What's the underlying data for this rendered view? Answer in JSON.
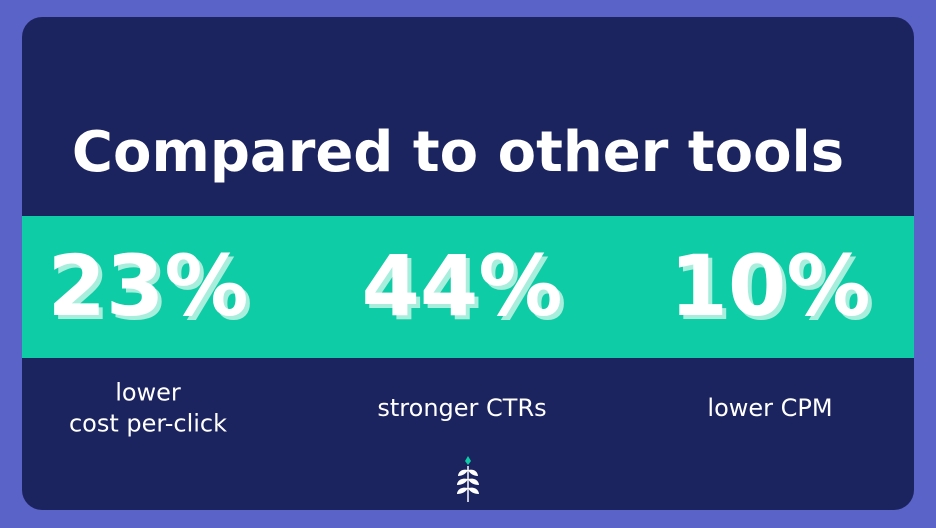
{
  "title": "Compared to other tools",
  "stats": [
    {
      "value": "23%",
      "label_lines": [
        "lower",
        "cost per-click"
      ]
    },
    {
      "value": "44%",
      "label_lines": [
        "stronger CTRs"
      ]
    },
    {
      "value": "10%",
      "label_lines": [
        "lower CPM"
      ]
    }
  ]
}
